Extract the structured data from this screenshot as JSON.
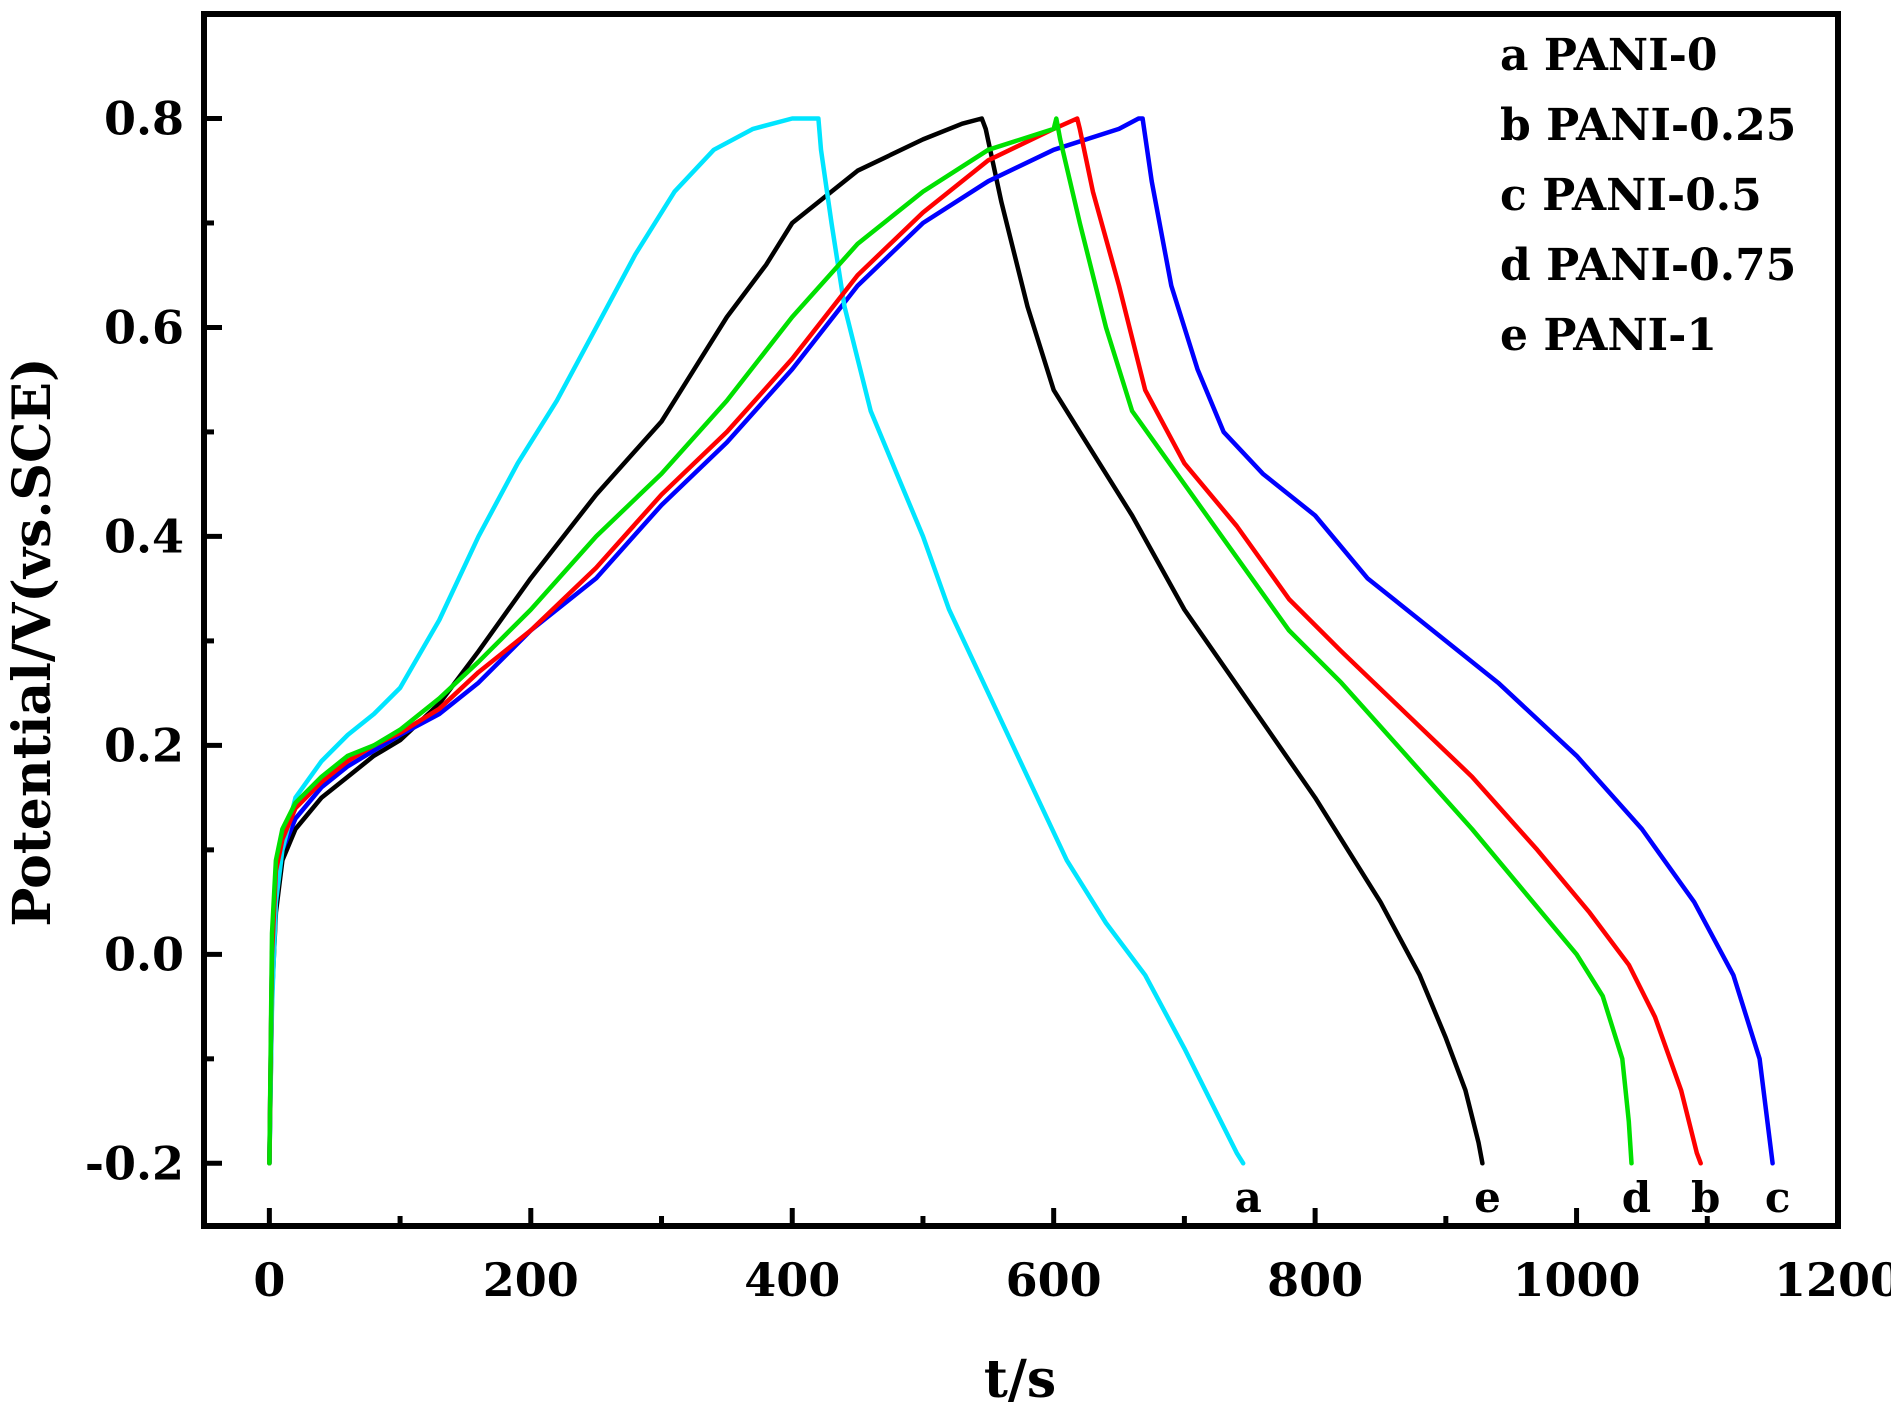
{
  "chart_data": {
    "type": "line",
    "title": "",
    "xlabel": "t/s",
    "ylabel": "Potential/V(vs.SCE)",
    "xlim": [
      -50,
      1200
    ],
    "ylim": [
      -0.26,
      0.9
    ],
    "xticks": [
      0,
      200,
      400,
      600,
      800,
      1000,
      1200
    ],
    "xtick_labels": [
      "0",
      "200",
      "400",
      "600",
      "800",
      "1000",
      "1200"
    ],
    "yticks": [
      -0.2,
      0.0,
      0.2,
      0.4,
      0.6,
      0.8
    ],
    "ytick_labels": [
      "-0.2",
      "0.0",
      "0.2",
      "0.4",
      "0.6",
      "0.8"
    ],
    "grid": false,
    "legend_position": "top-right",
    "legend": [
      "a PANI-0",
      "b PANI-0.25",
      "c PANI-0.5",
      "d PANI-0.75",
      "e PANI-1"
    ],
    "series": [
      {
        "name": "a PANI-0",
        "label": "a",
        "color": "#00e5ff",
        "x": [
          0,
          2,
          5,
          10,
          20,
          40,
          60,
          80,
          100,
          130,
          160,
          190,
          220,
          250,
          280,
          310,
          340,
          370,
          400,
          420,
          422,
          430,
          440,
          460,
          480,
          500,
          520,
          550,
          580,
          610,
          640,
          670,
          700,
          720,
          740,
          745
        ],
        "y": [
          -0.2,
          -0.05,
          0.05,
          0.1,
          0.15,
          0.185,
          0.21,
          0.23,
          0.255,
          0.32,
          0.4,
          0.47,
          0.53,
          0.6,
          0.67,
          0.73,
          0.77,
          0.79,
          0.8,
          0.8,
          0.77,
          0.7,
          0.62,
          0.52,
          0.46,
          0.4,
          0.33,
          0.25,
          0.17,
          0.09,
          0.03,
          -0.02,
          -0.09,
          -0.14,
          -0.19,
          -0.2
        ]
      },
      {
        "name": "b PANI-0.25",
        "label": "b",
        "color": "#ff0000",
        "x": [
          0,
          2,
          5,
          10,
          20,
          40,
          60,
          80,
          100,
          130,
          160,
          200,
          250,
          300,
          350,
          400,
          450,
          500,
          550,
          600,
          618,
          620,
          630,
          650,
          670,
          700,
          740,
          780,
          820,
          870,
          920,
          970,
          1010,
          1040,
          1060,
          1080,
          1092,
          1095
        ],
        "y": [
          -0.2,
          0.0,
          0.08,
          0.11,
          0.14,
          0.165,
          0.185,
          0.2,
          0.212,
          0.235,
          0.27,
          0.31,
          0.37,
          0.44,
          0.5,
          0.57,
          0.65,
          0.71,
          0.76,
          0.79,
          0.8,
          0.79,
          0.73,
          0.64,
          0.54,
          0.47,
          0.41,
          0.34,
          0.29,
          0.23,
          0.17,
          0.1,
          0.04,
          -0.01,
          -0.06,
          -0.13,
          -0.19,
          -0.2
        ]
      },
      {
        "name": "c PANI-0.5",
        "label": "c",
        "color": "#0000ff",
        "x": [
          0,
          2,
          5,
          10,
          20,
          40,
          60,
          80,
          100,
          130,
          160,
          200,
          250,
          300,
          350,
          400,
          450,
          500,
          550,
          600,
          650,
          665,
          668,
          675,
          690,
          710,
          730,
          760,
          800,
          840,
          880,
          940,
          1000,
          1050,
          1090,
          1120,
          1140,
          1150
        ],
        "y": [
          -0.2,
          0.0,
          0.07,
          0.1,
          0.13,
          0.16,
          0.18,
          0.195,
          0.21,
          0.23,
          0.26,
          0.31,
          0.36,
          0.43,
          0.49,
          0.56,
          0.64,
          0.7,
          0.74,
          0.77,
          0.79,
          0.8,
          0.8,
          0.74,
          0.64,
          0.56,
          0.5,
          0.46,
          0.42,
          0.36,
          0.32,
          0.26,
          0.19,
          0.12,
          0.05,
          -0.02,
          -0.1,
          -0.2
        ]
      },
      {
        "name": "d PANI-0.75",
        "label": "d",
        "color": "#00e000",
        "x": [
          0,
          2,
          5,
          10,
          20,
          40,
          60,
          80,
          100,
          130,
          160,
          200,
          250,
          300,
          350,
          400,
          450,
          500,
          550,
          600,
          602,
          605,
          620,
          640,
          660,
          700,
          740,
          780,
          820,
          870,
          920,
          960,
          1000,
          1020,
          1035,
          1040,
          1042
        ],
        "y": [
          -0.2,
          0.02,
          0.09,
          0.12,
          0.145,
          0.17,
          0.19,
          0.2,
          0.215,
          0.245,
          0.28,
          0.33,
          0.4,
          0.46,
          0.53,
          0.61,
          0.68,
          0.73,
          0.77,
          0.79,
          0.8,
          0.78,
          0.7,
          0.6,
          0.52,
          0.45,
          0.38,
          0.31,
          0.26,
          0.19,
          0.12,
          0.06,
          0.0,
          -0.04,
          -0.1,
          -0.16,
          -0.2
        ]
      },
      {
        "name": "e PANI-1",
        "label": "e",
        "color": "#000000",
        "x": [
          0,
          2,
          5,
          10,
          20,
          40,
          60,
          80,
          100,
          130,
          160,
          200,
          250,
          300,
          350,
          380,
          400,
          450,
          500,
          530,
          545,
          548,
          560,
          580,
          600,
          620,
          660,
          700,
          750,
          800,
          850,
          880,
          900,
          915,
          925,
          928
        ],
        "y": [
          -0.2,
          -0.04,
          0.04,
          0.09,
          0.12,
          0.15,
          0.17,
          0.19,
          0.205,
          0.24,
          0.29,
          0.36,
          0.44,
          0.51,
          0.61,
          0.66,
          0.7,
          0.75,
          0.78,
          0.795,
          0.8,
          0.79,
          0.72,
          0.62,
          0.54,
          0.5,
          0.42,
          0.33,
          0.24,
          0.15,
          0.05,
          -0.02,
          -0.08,
          -0.13,
          -0.18,
          -0.2
        ]
      }
    ]
  }
}
